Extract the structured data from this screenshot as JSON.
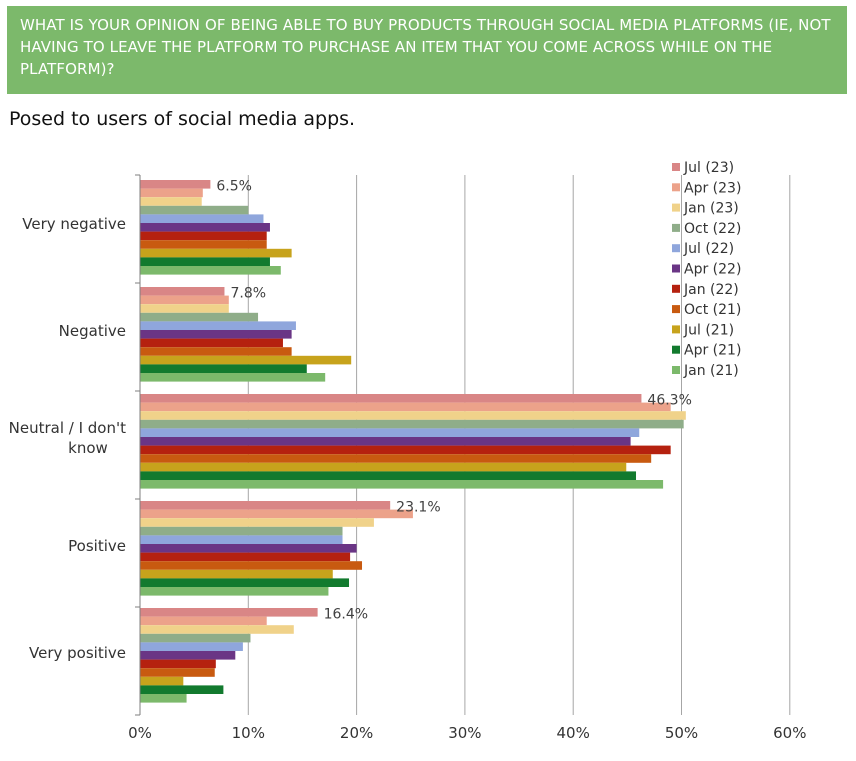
{
  "title": "WHAT IS YOUR OPINION OF BEING ABLE TO BUY PRODUCTS THROUGH SOCIAL MEDIA PLATFORMS (IE, NOT HAVING TO LEAVE THE PLATFORM TO PURCHASE AN ITEM THAT YOU COME ACROSS WHILE ON THE PLATFORM)?",
  "subtitle": "Posed to users of social media apps.",
  "colors": {
    "banner": "#7cb96b",
    "Jul (23)": "#d98686",
    "Apr (23)": "#eca28a",
    "Jan (23)": "#f0d28a",
    "Oct (22)": "#8fad89",
    "Jul (22)": "#8fa6dc",
    "Apr (22)": "#6a3585",
    "Jan (22)": "#b5210f",
    "Oct (21)": "#c85a10",
    "Jul (21)": "#c7a31c",
    "Apr (21)": "#127a2e",
    "Jan (21)": "#7cb96b"
  },
  "chart_data": {
    "type": "bar",
    "orientation": "horizontal",
    "categories": [
      "Very negative",
      "Negative",
      "Neutral / I don't know",
      "Positive",
      "Very positive"
    ],
    "xlim": [
      0,
      60
    ],
    "xticks": [
      "0%",
      "10%",
      "20%",
      "30%",
      "40%",
      "50%",
      "60%"
    ],
    "grid": true,
    "legend_position": "top-right",
    "series": [
      {
        "name": "Jul (23)",
        "values": [
          6.5,
          7.8,
          46.3,
          23.1,
          16.4
        ]
      },
      {
        "name": "Apr (23)",
        "values": [
          5.8,
          8.2,
          49.0,
          25.2,
          11.7
        ]
      },
      {
        "name": "Jan (23)",
        "values": [
          5.7,
          8.2,
          50.4,
          21.6,
          14.2
        ]
      },
      {
        "name": "Oct (22)",
        "values": [
          10.0,
          10.9,
          50.2,
          18.7,
          10.2
        ]
      },
      {
        "name": "Jul (22)",
        "values": [
          11.4,
          14.4,
          46.1,
          18.7,
          9.5
        ]
      },
      {
        "name": "Apr (22)",
        "values": [
          12.0,
          14.0,
          45.3,
          20.0,
          8.8
        ]
      },
      {
        "name": "Jan (22)",
        "values": [
          11.7,
          13.2,
          49.0,
          19.4,
          7.0
        ]
      },
      {
        "name": "Oct (21)",
        "values": [
          11.7,
          14.0,
          47.2,
          20.5,
          6.9
        ]
      },
      {
        "name": "Jul (21)",
        "values": [
          14.0,
          19.5,
          44.9,
          17.8,
          4.0
        ]
      },
      {
        "name": "Apr (21)",
        "values": [
          12.0,
          15.4,
          45.8,
          19.3,
          7.7
        ]
      },
      {
        "name": "Jan (21)",
        "values": [
          13.0,
          17.1,
          48.3,
          17.4,
          4.3
        ]
      }
    ],
    "data_labels": [
      {
        "category": "Very negative",
        "series": "Jul (23)",
        "text": "6.5%"
      },
      {
        "category": "Negative",
        "series": "Jul (23)",
        "text": "7.8%"
      },
      {
        "category": "Neutral / I don't know",
        "series": "Jul (23)",
        "text": "46.3%"
      },
      {
        "category": "Positive",
        "series": "Jul (23)",
        "text": "23.1%"
      },
      {
        "category": "Very positive",
        "series": "Jul (23)",
        "text": "16.4%"
      }
    ]
  }
}
